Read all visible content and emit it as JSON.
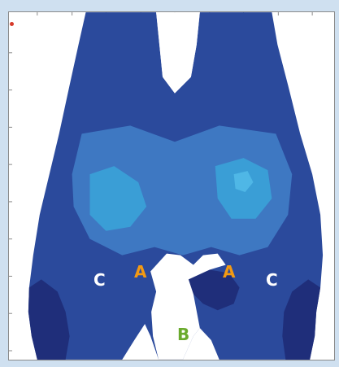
{
  "labels": {
    "a_left": "A",
    "a_right": "A",
    "b_center": "B",
    "c_left": "C",
    "c_right": "C"
  },
  "colors": {
    "background": "#cfe0f0",
    "frame_fill": "#ffffff",
    "deep_blue": "#1f2e7a",
    "mid_blue": "#2f4fa2",
    "light_blue": "#3e78c2",
    "cyan_blue": "#3a9ed6",
    "label_a": "#f39a13",
    "label_b": "#6aaa2d",
    "label_c": "#ffffff",
    "origin_marker": "#d63a2a"
  }
}
